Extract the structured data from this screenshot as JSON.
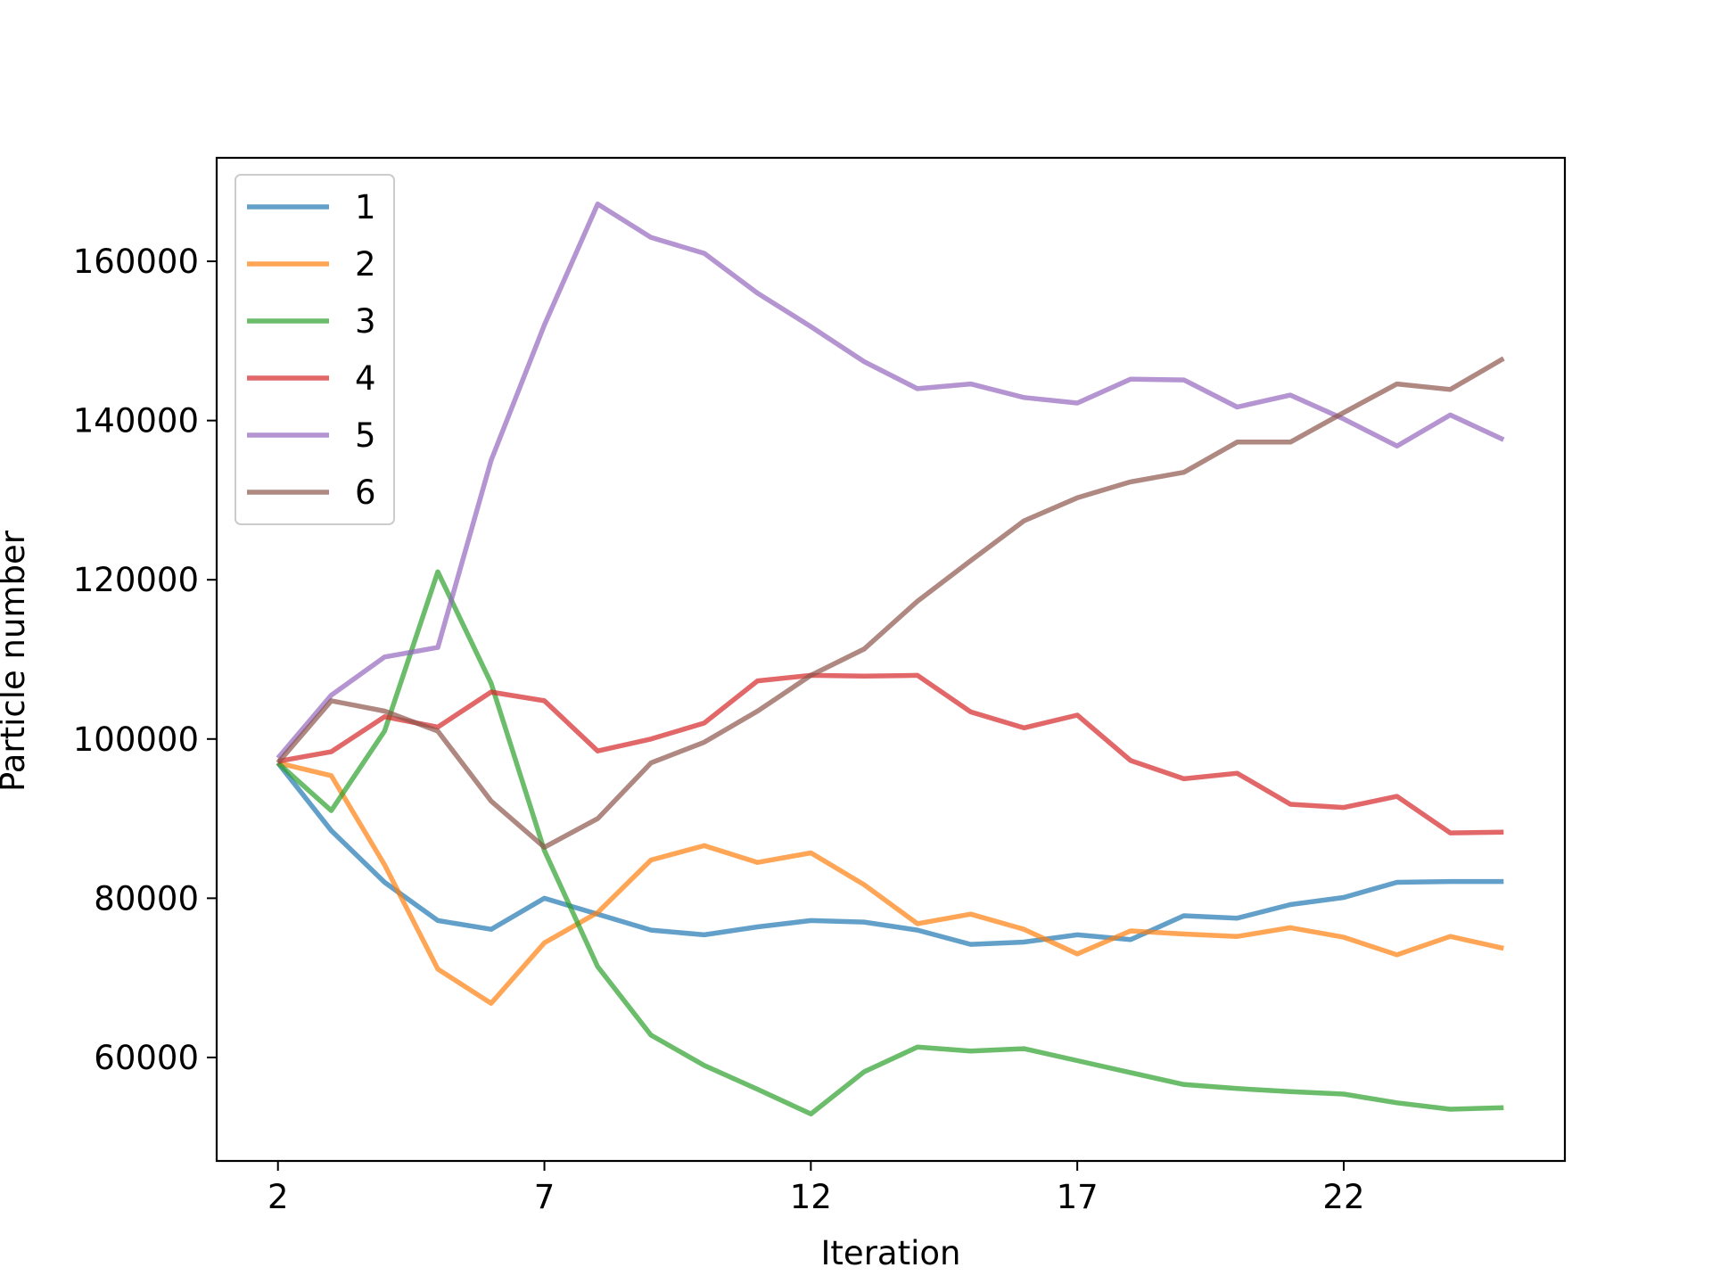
{
  "chart_data": {
    "type": "line",
    "title": "",
    "xlabel": "Iteration",
    "ylabel": "Particle number",
    "x": [
      2,
      3,
      4,
      5,
      6,
      7,
      8,
      9,
      10,
      11,
      12,
      13,
      14,
      15,
      16,
      17,
      18,
      19,
      20,
      21,
      22,
      23,
      24,
      25
    ],
    "xticks": [
      2,
      7,
      12,
      17,
      22
    ],
    "yticks": [
      60000,
      80000,
      100000,
      120000,
      140000,
      160000
    ],
    "xlim": [
      0.85,
      26.15
    ],
    "ylim": [
      47000,
      173000
    ],
    "grid": false,
    "legend_position": "upper-left",
    "series": [
      {
        "name": "1",
        "color": "#1f77b4",
        "values": [
          97000,
          88500,
          82000,
          77200,
          76100,
          80000,
          78000,
          76000,
          75400,
          76400,
          77200,
          77000,
          76000,
          74200,
          74500,
          75400,
          74800,
          77800,
          77500,
          79200,
          80100,
          82000,
          82100,
          82100
        ]
      },
      {
        "name": "2",
        "color": "#ff7f0e",
        "values": [
          97000,
          95400,
          84200,
          71100,
          66800,
          74400,
          78200,
          84800,
          86600,
          84500,
          85700,
          81700,
          76800,
          78000,
          76100,
          73000,
          75900,
          75500,
          75200,
          76300,
          75100,
          72900,
          75200,
          73700
        ]
      },
      {
        "name": "3",
        "color": "#2ca02c",
        "values": [
          97000,
          91000,
          101000,
          121000,
          107000,
          86000,
          71400,
          62800,
          59000,
          56000,
          52900,
          58200,
          61300,
          60800,
          61100,
          59600,
          58100,
          56600,
          56100,
          55700,
          55400,
          54300,
          53500,
          53700
        ]
      },
      {
        "name": "4",
        "color": "#d62728",
        "values": [
          97200,
          98400,
          102800,
          101500,
          105900,
          104800,
          98500,
          100000,
          102000,
          107300,
          108000,
          107900,
          108000,
          103400,
          101400,
          103000,
          97300,
          95000,
          95700,
          91800,
          91400,
          92800,
          88200,
          88300
        ]
      },
      {
        "name": "5",
        "color": "#9467bd",
        "values": [
          97600,
          105500,
          110300,
          111500,
          135000,
          152000,
          167200,
          163000,
          161000,
          156000,
          151800,
          147400,
          144000,
          144600,
          142900,
          142200,
          145200,
          145100,
          141700,
          143200,
          140200,
          136800,
          140700,
          137600
        ]
      },
      {
        "name": "6",
        "color": "#8c564b",
        "values": [
          97000,
          104800,
          103500,
          101000,
          92200,
          86400,
          90000,
          97000,
          99600,
          103500,
          108000,
          111300,
          117300,
          122400,
          127400,
          130300,
          132300,
          133500,
          137300,
          137300,
          141000,
          144600,
          143900,
          147800
        ]
      }
    ]
  }
}
